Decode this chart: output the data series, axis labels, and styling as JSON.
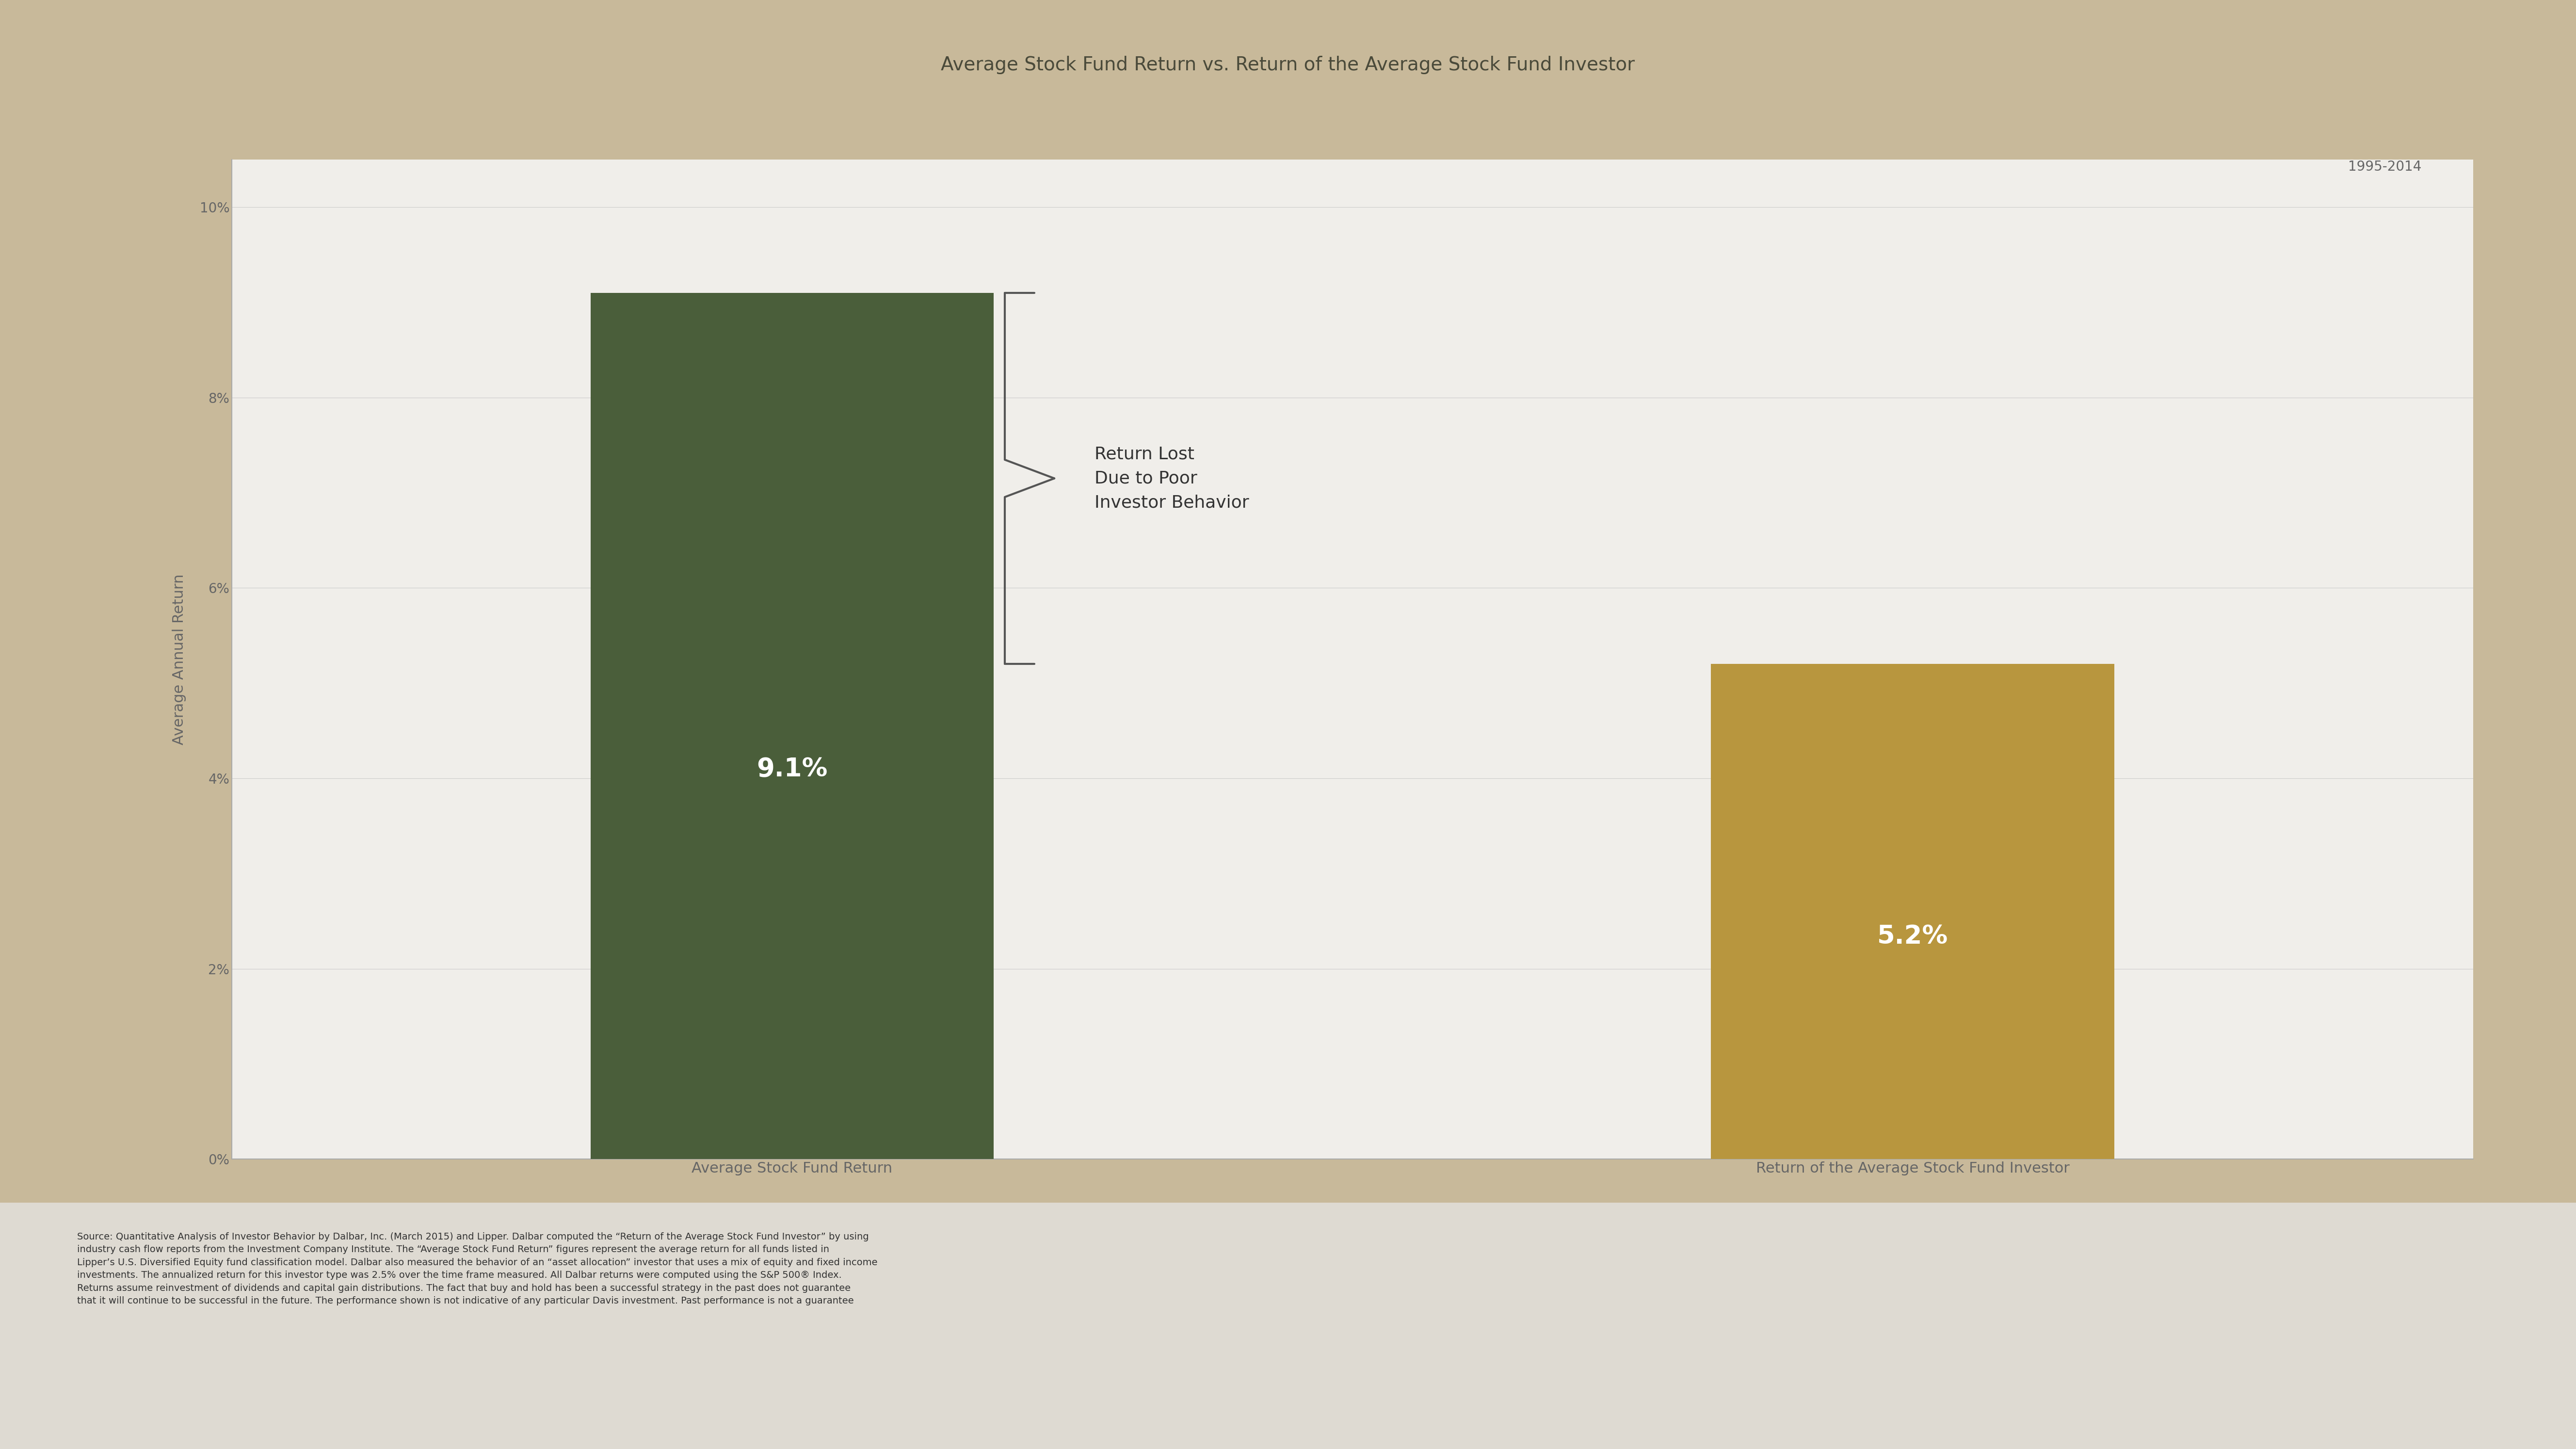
{
  "title": "Average Stock Fund Return vs. Return of the Average Stock Fund Investor",
  "subtitle": "1995-2014",
  "categories": [
    "Average Stock Fund Return",
    "Return of the Average Stock Fund Investor"
  ],
  "values": [
    9.1,
    5.2
  ],
  "bar_colors": [
    "#4a5e3a",
    "#b8963e"
  ],
  "bar_labels": [
    "9.1%",
    "5.2%"
  ],
  "ylabel": "Average Annual Return",
  "yticks": [
    0,
    2,
    4,
    6,
    8,
    10
  ],
  "ytick_labels": [
    "0%",
    "2%",
    "4%",
    "6%",
    "8%",
    "10%"
  ],
  "ylim": [
    0,
    10.5
  ],
  "annotation_text": "Return Lost\nDue to Poor\nInvestor Behavior",
  "bg_color_outer": "#c8b99a",
  "bg_color_inner": "#e8e4dc",
  "plot_bg_color": "#f0eeea",
  "title_color": "#4a4a3a",
  "bar_label_color": "#ffffff",
  "axis_color": "#666666",
  "annotation_color": "#333333",
  "title_fontsize": 28,
  "subtitle_fontsize": 20,
  "ylabel_fontsize": 22,
  "bar_label_fontsize": 38,
  "annotation_fontsize": 26,
  "xtick_fontsize": 22,
  "ytick_fontsize": 20,
  "source_fontsize": 14,
  "source_line1": "Source: Quantitative Analysis of Investor Behavior by Dalbar, Inc. (March 2015) and Lipper. Dalbar computed the “Return of the Average Stock Fund Investor” by using",
  "source_line2": "industry cash flow reports from the Investment Company Institute. The “Average Stock Fund Return” figures represent the average return for all funds listed in",
  "source_line3": "Lipper’s U.S. Diversified Equity fund classification model. Dalbar also measured the behavior of an “asset allocation” investor that uses a mix of equity and fixed income",
  "source_line4": "investments. The annualized return for this investor type was 2.5% over the time frame measured. All Dalbar returns were computed using the S&P 500® Index.",
  "source_line5": "Returns assume reinvestment of dividends and capital gain distributions. The fact that buy and hold has been a successful strategy in the past does not guarantee",
  "source_line6": "that it will continue to be successful in the future. The performance shown is not indicative of any particular Davis investment. Past performance is not a guarantee"
}
